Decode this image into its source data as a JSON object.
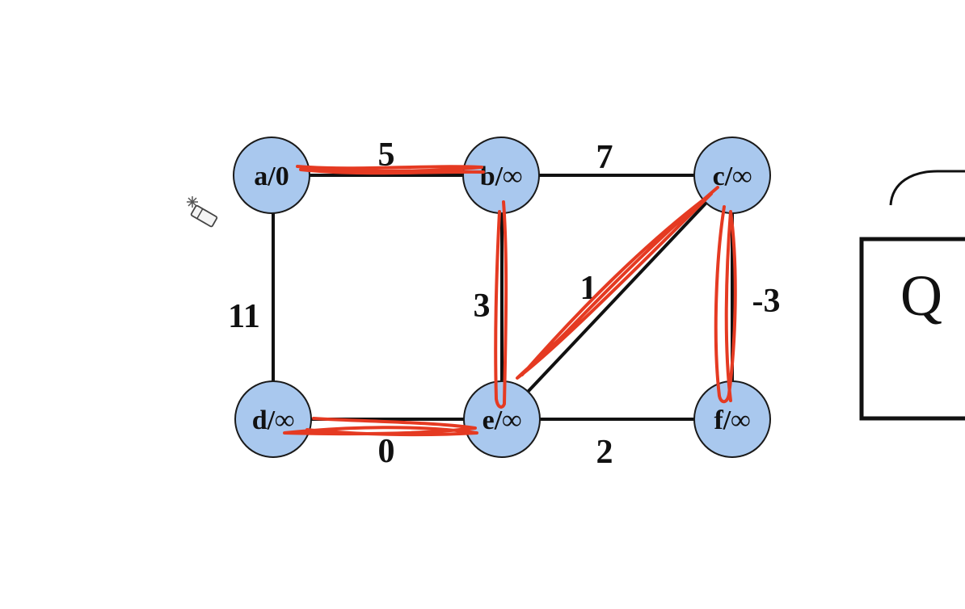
{
  "graph": {
    "nodes": [
      {
        "id": "a",
        "label": "a/0"
      },
      {
        "id": "b",
        "label": "b/∞"
      },
      {
        "id": "c",
        "label": "c/∞"
      },
      {
        "id": "d",
        "label": "d/∞"
      },
      {
        "id": "e",
        "label": "e/∞"
      },
      {
        "id": "f",
        "label": "f/∞"
      }
    ],
    "edges": [
      {
        "from": "a",
        "to": "b",
        "weight": "5"
      },
      {
        "from": "b",
        "to": "c",
        "weight": "7"
      },
      {
        "from": "a",
        "to": "d",
        "weight": "11"
      },
      {
        "from": "b",
        "to": "e",
        "weight": "3"
      },
      {
        "from": "e",
        "to": "c",
        "weight": "1"
      },
      {
        "from": "c",
        "to": "f",
        "weight": "-3"
      },
      {
        "from": "d",
        "to": "e",
        "weight": "0"
      },
      {
        "from": "e",
        "to": "f",
        "weight": "2"
      }
    ],
    "highlighted_edges": [
      "a-b",
      "b-e",
      "e-c",
      "c-f",
      "d-e"
    ]
  },
  "side_panel": {
    "label": "Q"
  },
  "colors": {
    "node_fill": "#a9c8ee",
    "annotation": "#e53a22",
    "stroke": "#111111"
  },
  "icons": {
    "cursor": "eraser-cursor-icon"
  }
}
